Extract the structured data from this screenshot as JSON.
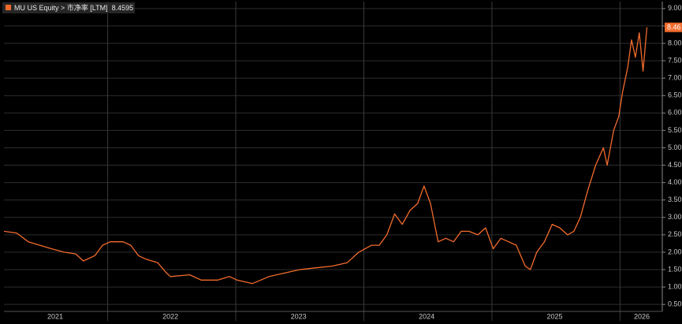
{
  "chart_data": {
    "type": "line",
    "legend_name": "MU US Equity > 市净率 [LTM]",
    "last_value": 8.4595,
    "last_value_label": "8.46",
    "series": [
      {
        "name": "MU US Equity > 市净率 [LTM]",
        "color": "#f26b2d",
        "x": [
          2021.19,
          2021.29,
          2021.38,
          2021.47,
          2021.56,
          2021.66,
          2021.75,
          2021.81,
          2021.9,
          2021.96,
          2022.02,
          2022.12,
          2022.18,
          2022.24,
          2022.3,
          2022.39,
          2022.46,
          2022.49,
          2022.64,
          2022.73,
          2022.86,
          2022.95,
          2023.01,
          2023.13,
          2023.26,
          2023.38,
          2023.5,
          2023.62,
          2023.75,
          2023.87,
          2023.96,
          2024.06,
          2024.12,
          2024.18,
          2024.24,
          2024.3,
          2024.36,
          2024.42,
          2024.47,
          2024.52,
          2024.58,
          2024.64,
          2024.7,
          2024.76,
          2024.82,
          2024.89,
          2024.95,
          2025.01,
          2025.07,
          2025.13,
          2025.19,
          2025.26,
          2025.3,
          2025.35,
          2025.41,
          2025.47,
          2025.53,
          2025.59,
          2025.64,
          2025.69,
          2025.75,
          2025.81,
          2025.87,
          2025.9,
          2025.95,
          2025.99,
          2026.02,
          2026.06,
          2026.09,
          2026.12,
          2026.15,
          2026.18,
          2026.21
        ],
        "values": [
          2.6,
          2.55,
          2.3,
          2.2,
          2.1,
          2.0,
          1.95,
          1.75,
          1.9,
          2.2,
          2.3,
          2.3,
          2.2,
          1.9,
          1.8,
          1.7,
          1.4,
          1.3,
          1.35,
          1.2,
          1.2,
          1.3,
          1.2,
          1.1,
          1.3,
          1.4,
          1.5,
          1.55,
          1.6,
          1.7,
          2.0,
          2.2,
          2.2,
          2.5,
          3.1,
          2.8,
          3.2,
          3.4,
          3.9,
          3.4,
          2.3,
          2.4,
          2.3,
          2.6,
          2.6,
          2.5,
          2.7,
          2.1,
          2.4,
          2.3,
          2.2,
          1.6,
          1.5,
          2.0,
          2.3,
          2.8,
          2.7,
          2.5,
          2.6,
          3.0,
          3.8,
          4.5,
          5.0,
          4.5,
          5.5,
          5.9,
          6.6,
          7.3,
          8.1,
          7.6,
          8.3,
          7.2,
          8.4595
        ]
      }
    ],
    "xlim": [
      2021.19,
      2026.33
    ],
    "xgrid": [
      2022,
      2023,
      2024,
      2025,
      2026
    ],
    "xticks": [
      {
        "value": 2021.59,
        "label": "2021"
      },
      {
        "value": 2022.49,
        "label": "2022"
      },
      {
        "value": 2023.49,
        "label": "2023"
      },
      {
        "value": 2024.49,
        "label": "2024"
      },
      {
        "value": 2025.49,
        "label": "2025"
      },
      {
        "value": 2026.17,
        "label": "2026"
      }
    ],
    "ylim": [
      0.3,
      9.2
    ],
    "yticks": [
      {
        "value": 0.5,
        "label": "0.50"
      },
      {
        "value": 1,
        "label": "1.00"
      },
      {
        "value": 1.5,
        "label": "1.50"
      },
      {
        "value": 2,
        "label": "2.00"
      },
      {
        "value": 2.5,
        "label": "2.50"
      },
      {
        "value": 3,
        "label": "3.00"
      },
      {
        "value": 3.5,
        "label": "3.50"
      },
      {
        "value": 4,
        "label": "4.00"
      },
      {
        "value": 4.5,
        "label": "4.50"
      },
      {
        "value": 5,
        "label": "5.00"
      },
      {
        "value": 5.5,
        "label": "5.50"
      },
      {
        "value": 6,
        "label": "6.00"
      },
      {
        "value": 6.5,
        "label": "6.50"
      },
      {
        "value": 7,
        "label": "7.00"
      },
      {
        "value": 7.5,
        "label": "7.50"
      },
      {
        "value": 8,
        "label": "8.00"
      },
      {
        "value": 8.5,
        "label": "8.50"
      },
      {
        "value": 9,
        "label": "9.00"
      }
    ],
    "grid": true
  }
}
